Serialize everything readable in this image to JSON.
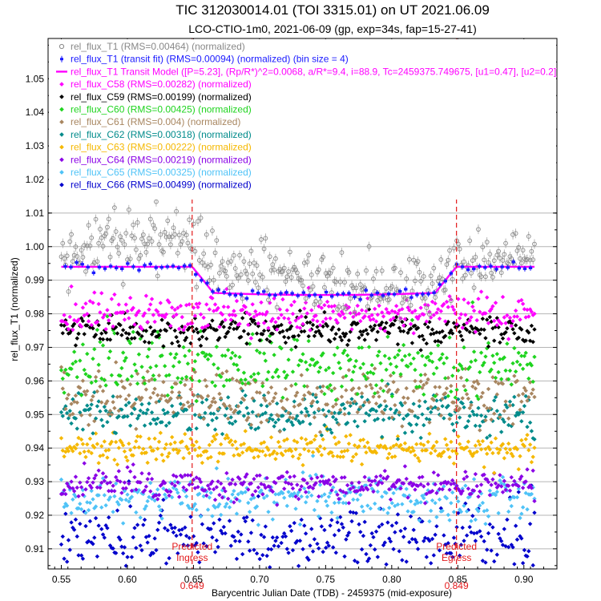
{
  "chart_data": {
    "type": "scatter",
    "title": "TIC 312030014.01 (TOI 3315.01) on UT 2021.06.09",
    "subtitle": "LCO-CTIO-1m0, 2021-06-09 (gp, exp=34s, fap=15-27-41)",
    "xlabel": "Barycentric Julian Date (TDB) - 2459375 (mid-exposure)",
    "ylabel": "rel_flux_T1 (normalized)",
    "xlim": [
      0.54,
      0.925
    ],
    "ylim": [
      0.904,
      1.062
    ],
    "grid": true,
    "legend_position": "top-left",
    "x_ticks": [
      "0.55",
      "0.60",
      "0.65",
      "0.70",
      "0.75",
      "0.80",
      "0.85",
      "0.90"
    ],
    "x_tick_values": [
      0.55,
      0.6,
      0.65,
      0.7,
      0.75,
      0.8,
      0.85,
      0.9
    ],
    "y_ticks": [
      "0.91",
      "0.92",
      "0.93",
      "0.94",
      "0.95",
      "0.96",
      "0.97",
      "0.98",
      "0.99",
      "1.00",
      "1.01",
      "1.02",
      "1.03",
      "1.04",
      "1.05"
    ],
    "y_tick_values": [
      0.91,
      0.92,
      0.93,
      0.94,
      0.95,
      0.96,
      0.97,
      0.98,
      0.99,
      1.0,
      1.01,
      1.02,
      1.03,
      1.04,
      1.05
    ],
    "time_range": [
      0.55,
      0.908
    ],
    "transit": {
      "ingress": 0.649,
      "egress": 0.849
    },
    "annotations": [
      {
        "label": "Predicted",
        "label2": "Ingress",
        "value_label": "0.649",
        "x": 0.649
      },
      {
        "label": "Predicted",
        "label2": "Egress",
        "value_label": "0.849",
        "x": 0.849
      }
    ],
    "legend": [
      {
        "label": "rel_flux_T1 (RMS=0.00464) (normalized)",
        "color": "#888888",
        "marker": "open-circle"
      },
      {
        "label": "rel_flux_T1 (transit fit) (RMS=0.00094) (normalized) (bin size = 4)",
        "color": "#1a1aff",
        "marker": "errorbar"
      },
      {
        "label": "rel_flux_T1 Transit Model ([P=5.23], (Rp/R*)^2=0.0068, a/R*=9.4, i=88.9, Tc=2459375.749675, [u1=0.47], [u2=0.2])",
        "color": "#ff00ff",
        "marker": "line"
      },
      {
        "label": "rel_flux_C58 (RMS=0.00282) (normalized)",
        "color": "#ff00ff",
        "marker": "diamond"
      },
      {
        "label": "rel_flux_C59 (RMS=0.00199) (normalized)",
        "color": "#000000",
        "marker": "diamond"
      },
      {
        "label": "rel_flux_C60 (RMS=0.00425) (normalized)",
        "color": "#1fd41f",
        "marker": "diamond"
      },
      {
        "label": "rel_flux_C61 (RMS=0.004) (normalized)",
        "color": "#a88660",
        "marker": "diamond"
      },
      {
        "label": "rel_flux_C62 (RMS=0.00318) (normalized)",
        "color": "#008b8b",
        "marker": "diamond"
      },
      {
        "label": "rel_flux_C63 (RMS=0.00222) (normalized)",
        "color": "#f5b800",
        "marker": "diamond"
      },
      {
        "label": "rel_flux_C64 (RMS=0.00219) (normalized)",
        "color": "#8a00e6",
        "marker": "diamond"
      },
      {
        "label": "rel_flux_C65 (RMS=0.00325) (normalized)",
        "color": "#4fc3f7",
        "marker": "diamond"
      },
      {
        "label": "rel_flux_C66 (RMS=0.00499) (normalized)",
        "color": "#0000cc",
        "marker": "diamond"
      }
    ],
    "series": [
      {
        "key": "T1",
        "color": "#888888",
        "baseline": 1.001,
        "rms": 0.00464,
        "marker": "open-circle",
        "depth": 0.0068
      },
      {
        "key": "C58",
        "color": "#ff00ff",
        "baseline": 0.98,
        "rms": 0.00282,
        "marker": "diamond"
      },
      {
        "key": "C59",
        "color": "#000000",
        "baseline": 0.975,
        "rms": 0.00199,
        "marker": "diamond"
      },
      {
        "key": "C60",
        "color": "#1fd41f",
        "baseline": 0.965,
        "rms": 0.00425,
        "marker": "diamond"
      },
      {
        "key": "C61",
        "color": "#a88660",
        "baseline": 0.955,
        "rms": 0.004,
        "marker": "diamond"
      },
      {
        "key": "C62",
        "color": "#008b8b",
        "baseline": 0.95,
        "rms": 0.00318,
        "marker": "diamond"
      },
      {
        "key": "C63",
        "color": "#f5b800",
        "baseline": 0.94,
        "rms": 0.00222,
        "marker": "diamond"
      },
      {
        "key": "C64",
        "color": "#8a00e6",
        "baseline": 0.929,
        "rms": 0.00219,
        "marker": "diamond"
      },
      {
        "key": "C65",
        "color": "#4fc3f7",
        "baseline": 0.925,
        "rms": 0.00325,
        "marker": "diamond"
      },
      {
        "key": "C66",
        "color": "#0000cc",
        "baseline": 0.913,
        "rms": 0.00499,
        "marker": "diamond"
      }
    ],
    "binned_fit": {
      "color": "#1a1aff",
      "baseline": 0.994,
      "depth": 0.0084,
      "rms": 0.00094
    },
    "model": {
      "color": "#ff00ff",
      "baseline": 0.994,
      "depth": 0.0084
    }
  }
}
